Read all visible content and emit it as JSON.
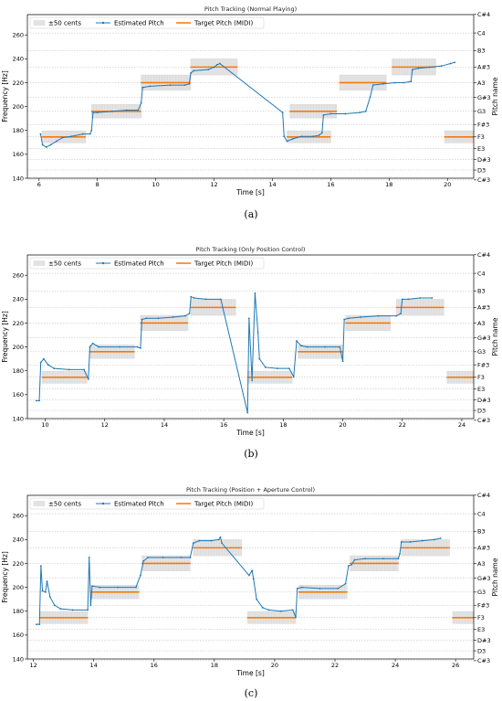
{
  "captions": [
    "(a)",
    "(b)",
    "(c)"
  ],
  "chart_data": [
    {
      "type": "line",
      "title": "Pitch Tracking (Normal Playing)",
      "xlabel": "Time [s]",
      "ylabel": "Frequency [Hz]",
      "y2label": "Pitch name",
      "xlim": [
        5.6,
        20.9
      ],
      "ylim": [
        140,
        277
      ],
      "x_ticks": [
        "6",
        "8",
        "10",
        "12",
        "14",
        "16",
        "18",
        "20"
      ],
      "y_ticks": [
        "140",
        "160",
        "180",
        "200",
        "220",
        "240",
        "260"
      ],
      "pitch_names": [
        "C#3",
        "D3",
        "D#3",
        "E3",
        "F3",
        "F#3",
        "G3",
        "G#3",
        "A3",
        "A#3",
        "B3",
        "C4",
        "C#4"
      ],
      "pitch_freqs": [
        138.59,
        146.83,
        155.56,
        164.81,
        174.61,
        185.0,
        196.0,
        207.65,
        220.0,
        233.08,
        246.94,
        261.63,
        277.18
      ],
      "legend": {
        "position": "top-left",
        "entries": [
          "±50 cents",
          "Estimated Pitch",
          "Target Pitch (MIDI)"
        ]
      },
      "grid": "horizontal",
      "series": [
        {
          "name": "Target Pitch (MIDI)",
          "color": "#ff7f0e",
          "segments": [
            {
              "x0": 6.1,
              "x1": 7.6,
              "y": 174.61
            },
            {
              "x0": 7.8,
              "x1": 9.5,
              "y": 196.0
            },
            {
              "x0": 9.5,
              "x1": 11.2,
              "y": 220.0
            },
            {
              "x0": 11.2,
              "x1": 12.8,
              "y": 233.08
            },
            {
              "x0": 14.5,
              "x1": 16.0,
              "y": 174.61
            },
            {
              "x0": 14.6,
              "x1": 16.2,
              "y": 196.0
            },
            {
              "x0": 16.3,
              "x1": 17.9,
              "y": 220.0
            },
            {
              "x0": 18.1,
              "x1": 19.6,
              "y": 233.08
            },
            {
              "x0": 19.9,
              "x1": 20.9,
              "y": 174.61
            }
          ]
        },
        {
          "name": "Estimated Pitch",
          "color": "#1f77b4",
          "points": [
            [
              6.05,
              177
            ],
            [
              6.12,
              168
            ],
            [
              6.25,
              166
            ],
            [
              6.4,
              168
            ],
            [
              6.6,
              171
            ],
            [
              6.8,
              174
            ],
            [
              7.1,
              175
            ],
            [
              7.5,
              177
            ],
            [
              7.75,
              177
            ],
            [
              7.8,
              180
            ],
            [
              7.85,
              195
            ],
            [
              8.0,
              195
            ],
            [
              8.5,
              196
            ],
            [
              9.0,
              197
            ],
            [
              9.4,
              197
            ],
            [
              9.5,
              203
            ],
            [
              9.55,
              216
            ],
            [
              9.8,
              217
            ],
            [
              10.5,
              218
            ],
            [
              11.0,
              218
            ],
            [
              11.15,
              219
            ],
            [
              11.2,
              228
            ],
            [
              11.3,
              230
            ],
            [
              11.8,
              231
            ],
            [
              12.0,
              233
            ],
            [
              12.1,
              235
            ],
            [
              12.2,
              236
            ],
            [
              14.35,
              195
            ],
            [
              14.4,
              175
            ],
            [
              14.5,
              171
            ],
            [
              14.7,
              173
            ],
            [
              15.0,
              175
            ],
            [
              15.4,
              175
            ],
            [
              15.6,
              176
            ],
            [
              15.7,
              178
            ],
            [
              15.75,
              193
            ],
            [
              16.0,
              194
            ],
            [
              16.5,
              194
            ],
            [
              17.0,
              195
            ],
            [
              17.2,
              196
            ],
            [
              17.35,
              208
            ],
            [
              17.45,
              218
            ],
            [
              17.8,
              219
            ],
            [
              18.2,
              220
            ],
            [
              18.5,
              220
            ],
            [
              18.75,
              221
            ],
            [
              18.8,
              231
            ],
            [
              19.0,
              232
            ],
            [
              19.4,
              233
            ],
            [
              19.8,
              234
            ],
            [
              20.1,
              236
            ],
            [
              20.25,
              237
            ]
          ]
        }
      ]
    },
    {
      "type": "line",
      "title": "Pitch Tracking (Only Position Control)",
      "xlabel": "Time [s]",
      "ylabel": "Frequency [Hz]",
      "y2label": "Pitch name",
      "xlim": [
        9.4,
        24.4
      ],
      "ylim": [
        140,
        277
      ],
      "x_ticks": [
        "10",
        "12",
        "14",
        "16",
        "18",
        "20",
        "22",
        "24"
      ],
      "y_ticks": [
        "140",
        "160",
        "180",
        "200",
        "220",
        "240",
        "260"
      ],
      "pitch_names": [
        "C#3",
        "D3",
        "D#3",
        "E3",
        "F3",
        "F#3",
        "G3",
        "G#3",
        "A3",
        "A#3",
        "B3",
        "C4",
        "C#4"
      ],
      "pitch_freqs": [
        138.59,
        146.83,
        155.56,
        164.81,
        174.61,
        185.0,
        196.0,
        207.65,
        220.0,
        233.08,
        246.94,
        261.63,
        277.18
      ],
      "legend": {
        "position": "top-left",
        "entries": [
          "±50 cents",
          "Estimated Pitch",
          "Target Pitch (MIDI)"
        ]
      },
      "grid": "horizontal",
      "series": [
        {
          "name": "Target Pitch (MIDI)",
          "color": "#ff7f0e",
          "segments": [
            {
              "x0": 9.9,
              "x1": 11.4,
              "y": 174.61
            },
            {
              "x0": 11.5,
              "x1": 13.0,
              "y": 196.0
            },
            {
              "x0": 13.2,
              "x1": 14.8,
              "y": 220.0
            },
            {
              "x0": 14.9,
              "x1": 16.4,
              "y": 233.08
            },
            {
              "x0": 16.8,
              "x1": 18.3,
              "y": 174.61
            },
            {
              "x0": 18.5,
              "x1": 20.0,
              "y": 196.0
            },
            {
              "x0": 20.1,
              "x1": 21.6,
              "y": 220.0
            },
            {
              "x0": 21.8,
              "x1": 23.4,
              "y": 233.08
            },
            {
              "x0": 23.5,
              "x1": 24.4,
              "y": 174.61
            }
          ]
        },
        {
          "name": "Estimated Pitch",
          "color": "#1f77b4",
          "points": [
            [
              9.7,
              155
            ],
            [
              9.8,
              155
            ],
            [
              9.85,
              187
            ],
            [
              9.95,
              190
            ],
            [
              10.1,
              185
            ],
            [
              10.3,
              182
            ],
            [
              10.8,
              181
            ],
            [
              11.3,
              181
            ],
            [
              11.45,
              173
            ],
            [
              11.5,
              200
            ],
            [
              11.6,
              203
            ],
            [
              11.8,
              200
            ],
            [
              12.5,
              200
            ],
            [
              13.1,
              200
            ],
            [
              13.2,
              199
            ],
            [
              13.25,
              223
            ],
            [
              13.4,
              224
            ],
            [
              13.8,
              224
            ],
            [
              14.3,
              225
            ],
            [
              14.7,
              226
            ],
            [
              14.85,
              228
            ],
            [
              14.9,
              242
            ],
            [
              15.0,
              241
            ],
            [
              15.4,
              240
            ],
            [
              15.9,
              240
            ],
            [
              16.8,
              145
            ],
            [
              16.85,
              224
            ],
            [
              16.95,
              172
            ],
            [
              17.05,
              245
            ],
            [
              17.15,
              212
            ],
            [
              17.2,
              190
            ],
            [
              17.4,
              183
            ],
            [
              17.8,
              182
            ],
            [
              18.2,
              182
            ],
            [
              18.35,
              175
            ],
            [
              18.45,
              205
            ],
            [
              18.6,
              201
            ],
            [
              18.8,
              200
            ],
            [
              19.4,
              200
            ],
            [
              19.9,
              200
            ],
            [
              20.0,
              188
            ],
            [
              20.05,
              223
            ],
            [
              20.2,
              224
            ],
            [
              20.6,
              225
            ],
            [
              21.2,
              226
            ],
            [
              21.8,
              226
            ],
            [
              21.95,
              228
            ],
            [
              22.0,
              240
            ],
            [
              22.2,
              240
            ],
            [
              22.6,
              241
            ],
            [
              23.0,
              241
            ]
          ]
        }
      ]
    },
    {
      "type": "line",
      "title": "Pitch Tracking (Position + Aperture Control)",
      "xlabel": "Time [s]",
      "ylabel": "Frequency [Hz]",
      "y2label": "Pitch name",
      "xlim": [
        11.8,
        26.6
      ],
      "ylim": [
        140,
        277
      ],
      "x_ticks": [
        "12",
        "14",
        "16",
        "18",
        "20",
        "22",
        "24",
        "26"
      ],
      "y_ticks": [
        "140",
        "160",
        "180",
        "200",
        "220",
        "240",
        "260"
      ],
      "pitch_names": [
        "C#3",
        "D3",
        "D#3",
        "E3",
        "F3",
        "F#3",
        "G3",
        "G#3",
        "A3",
        "A#3",
        "B3",
        "C4",
        "C#4"
      ],
      "pitch_freqs": [
        138.59,
        146.83,
        155.56,
        164.81,
        174.61,
        185.0,
        196.0,
        207.65,
        220.0,
        233.08,
        246.94,
        261.63,
        277.18
      ],
      "legend": {
        "position": "top-left",
        "entries": [
          "±50 cents",
          "Estimated Pitch",
          "Target Pitch (MIDI)"
        ]
      },
      "grid": "horizontal",
      "series": [
        {
          "name": "Target Pitch (MIDI)",
          "color": "#ff7f0e",
          "segments": [
            {
              "x0": 12.2,
              "x1": 13.8,
              "y": 174.61
            },
            {
              "x0": 13.9,
              "x1": 15.5,
              "y": 196.0
            },
            {
              "x0": 15.6,
              "x1": 17.2,
              "y": 220.0
            },
            {
              "x0": 17.3,
              "x1": 18.9,
              "y": 233.08
            },
            {
              "x0": 19.1,
              "x1": 20.7,
              "y": 174.61
            },
            {
              "x0": 20.8,
              "x1": 22.4,
              "y": 196.0
            },
            {
              "x0": 22.5,
              "x1": 24.1,
              "y": 220.0
            },
            {
              "x0": 24.2,
              "x1": 25.8,
              "y": 233.08
            },
            {
              "x0": 25.9,
              "x1": 26.6,
              "y": 174.61
            }
          ]
        },
        {
          "name": "Estimated Pitch",
          "color": "#1f77b4",
          "points": [
            [
              12.1,
              169
            ],
            [
              12.2,
              169
            ],
            [
              12.25,
              218
            ],
            [
              12.3,
              197
            ],
            [
              12.4,
              196
            ],
            [
              12.45,
              205
            ],
            [
              12.55,
              192
            ],
            [
              12.7,
              185
            ],
            [
              12.9,
              182
            ],
            [
              13.3,
              181
            ],
            [
              13.8,
              181
            ],
            [
              13.85,
              225
            ],
            [
              13.9,
              185
            ],
            [
              13.95,
              201
            ],
            [
              14.2,
              200
            ],
            [
              14.8,
              200
            ],
            [
              15.4,
              200
            ],
            [
              15.55,
              210
            ],
            [
              15.65,
              222
            ],
            [
              15.8,
              225
            ],
            [
              16.3,
              225
            ],
            [
              16.9,
              225
            ],
            [
              17.2,
              225
            ],
            [
              17.3,
              237
            ],
            [
              17.5,
              239
            ],
            [
              17.9,
              239
            ],
            [
              18.15,
              240
            ],
            [
              18.2,
              242
            ],
            [
              18.25,
              237
            ],
            [
              19.15,
              210
            ],
            [
              19.25,
              214
            ],
            [
              19.3,
              207
            ],
            [
              19.4,
              190
            ],
            [
              19.6,
              183
            ],
            [
              19.8,
              181
            ],
            [
              20.2,
              180
            ],
            [
              20.6,
              181
            ],
            [
              20.7,
              175
            ],
            [
              20.75,
              199
            ],
            [
              20.9,
              200
            ],
            [
              21.5,
              199
            ],
            [
              22.1,
              199
            ],
            [
              22.35,
              203
            ],
            [
              22.45,
              218
            ],
            [
              22.55,
              219
            ],
            [
              22.65,
              223
            ],
            [
              23.0,
              224
            ],
            [
              23.6,
              224
            ],
            [
              24.1,
              224
            ],
            [
              24.15,
              228
            ],
            [
              24.2,
              238
            ],
            [
              24.5,
              238
            ],
            [
              24.9,
              239
            ],
            [
              25.3,
              240
            ],
            [
              25.5,
              241
            ]
          ]
        }
      ]
    }
  ]
}
